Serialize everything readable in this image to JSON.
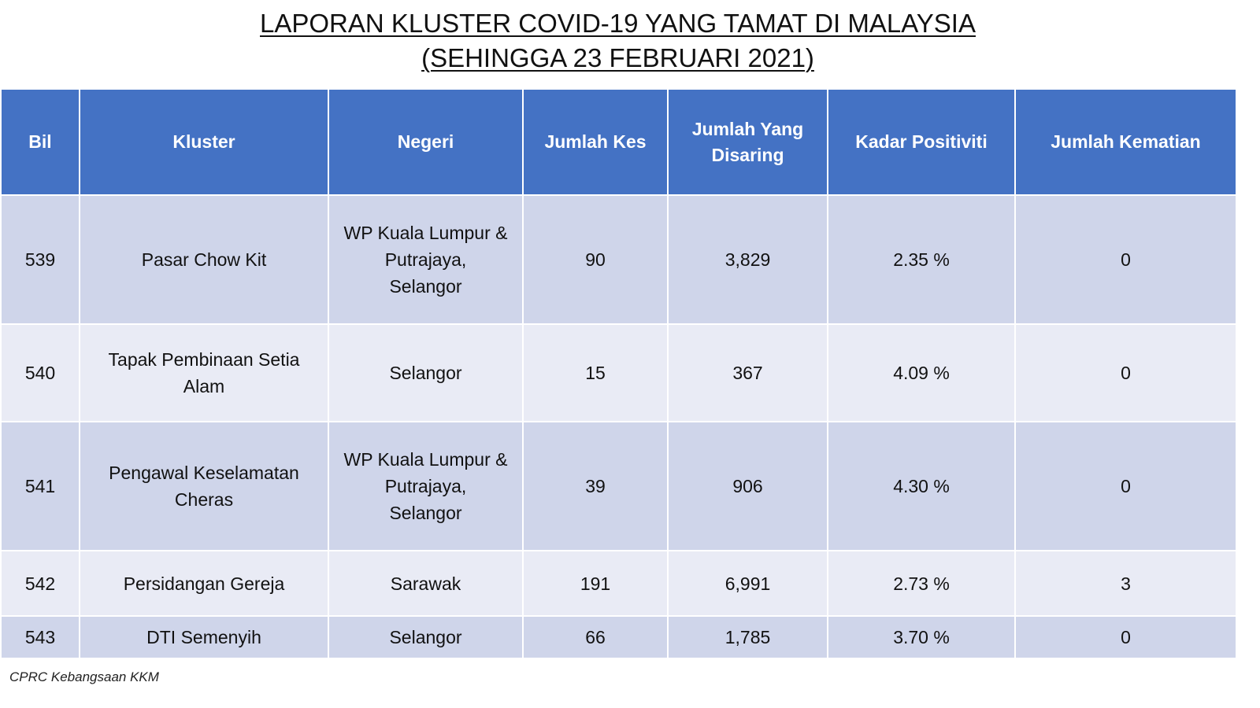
{
  "title": {
    "line1": "LAPORAN KLUSTER COVID-19 YANG TAMAT DI MALAYSIA",
    "line2": "(SEHINGGA 23 FEBRUARI 2021)"
  },
  "table": {
    "headers": {
      "bil": "Bil",
      "kluster": "Kluster",
      "negeri": "Negeri",
      "jumlah_kes": "Jumlah Kes",
      "jumlah_disaring_1": "Jumlah Yang",
      "jumlah_disaring_2": "Disaring",
      "kadar_positiviti": "Kadar Positiviti",
      "jumlah_kematian": "Jumlah Kematian"
    },
    "rows": [
      {
        "bil": "539",
        "kluster": [
          "Pasar Chow Kit"
        ],
        "negeri": [
          "WP Kuala Lumpur &",
          "Putrajaya,",
          "Selangor"
        ],
        "jumlah_kes": "90",
        "jumlah_disaring": "3,829",
        "kadar_positiviti": "2.35 %",
        "jumlah_kematian": "0"
      },
      {
        "bil": "540",
        "kluster": [
          "Tapak Pembinaan Setia",
          "Alam"
        ],
        "negeri": [
          "Selangor"
        ],
        "jumlah_kes": "15",
        "jumlah_disaring": "367",
        "kadar_positiviti": "4.09 %",
        "jumlah_kematian": "0"
      },
      {
        "bil": "541",
        "kluster": [
          "Pengawal Keselamatan",
          "Cheras"
        ],
        "negeri": [
          "WP Kuala Lumpur &",
          "Putrajaya,",
          "Selangor"
        ],
        "jumlah_kes": "39",
        "jumlah_disaring": "906",
        "kadar_positiviti": "4.30 %",
        "jumlah_kematian": "0"
      },
      {
        "bil": "542",
        "kluster": [
          "Persidangan Gereja"
        ],
        "negeri": [
          "Sarawak"
        ],
        "jumlah_kes": "191",
        "jumlah_disaring": "6,991",
        "kadar_positiviti": "2.73 %",
        "jumlah_kematian": "3"
      },
      {
        "bil": "543",
        "kluster": [
          "DTI Semenyih"
        ],
        "negeri": [
          "Selangor"
        ],
        "jumlah_kes": "66",
        "jumlah_disaring": "1,785",
        "kadar_positiviti": "3.70 %",
        "jumlah_kematian": "0"
      }
    ]
  },
  "footer": {
    "source": "CPRC Kebangsaan KKM"
  },
  "colors": {
    "header_bg": "#4472c4",
    "row_dark": "#cfd5ea",
    "row_light": "#e9ebf5"
  }
}
